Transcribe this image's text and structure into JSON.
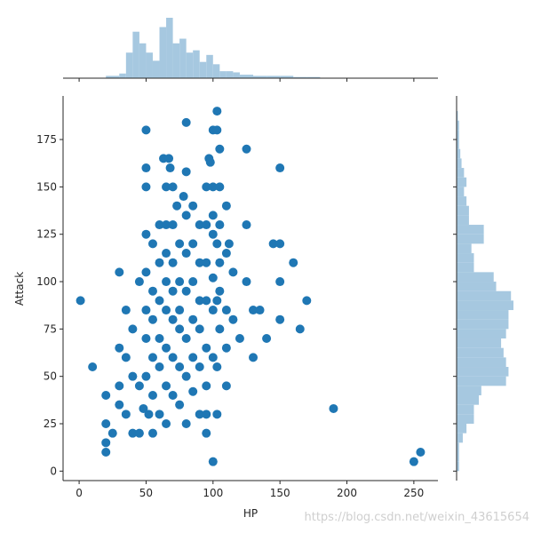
{
  "chart_data": {
    "type": "scatter",
    "title": "",
    "xlabel": "HP",
    "ylabel": "Attack",
    "xlim": [
      -12,
      268
    ],
    "ylim": [
      -5,
      198
    ],
    "x_ticks": [
      0,
      50,
      100,
      150,
      200,
      250
    ],
    "y_ticks": [
      0,
      25,
      50,
      75,
      100,
      125,
      150,
      175
    ],
    "grid": false,
    "point_color": "#1f77b4",
    "hist_color": "#a6c8e0",
    "points": [
      [
        1,
        90
      ],
      [
        10,
        55
      ],
      [
        20,
        40
      ],
      [
        20,
        25
      ],
      [
        20,
        15
      ],
      [
        20,
        10
      ],
      [
        25,
        20
      ],
      [
        30,
        35
      ],
      [
        30,
        45
      ],
      [
        30,
        65
      ],
      [
        30,
        105
      ],
      [
        35,
        85
      ],
      [
        35,
        30
      ],
      [
        35,
        60
      ],
      [
        40,
        20
      ],
      [
        40,
        50
      ],
      [
        40,
        75
      ],
      [
        45,
        20
      ],
      [
        45,
        45
      ],
      [
        45,
        100
      ],
      [
        48,
        33
      ],
      [
        50,
        180
      ],
      [
        50,
        160
      ],
      [
        50,
        150
      ],
      [
        50,
        125
      ],
      [
        50,
        105
      ],
      [
        50,
        85
      ],
      [
        50,
        70
      ],
      [
        50,
        50
      ],
      [
        52,
        30
      ],
      [
        55,
        120
      ],
      [
        55,
        95
      ],
      [
        55,
        80
      ],
      [
        55,
        60
      ],
      [
        55,
        40
      ],
      [
        55,
        20
      ],
      [
        60,
        130
      ],
      [
        60,
        110
      ],
      [
        60,
        90
      ],
      [
        60,
        70
      ],
      [
        60,
        55
      ],
      [
        60,
        30
      ],
      [
        63,
        165
      ],
      [
        65,
        150
      ],
      [
        65,
        130
      ],
      [
        65,
        115
      ],
      [
        65,
        100
      ],
      [
        65,
        85
      ],
      [
        65,
        65
      ],
      [
        65,
        45
      ],
      [
        65,
        25
      ],
      [
        67,
        165
      ],
      [
        68,
        160
      ],
      [
        70,
        150
      ],
      [
        70,
        130
      ],
      [
        70,
        110
      ],
      [
        70,
        95
      ],
      [
        70,
        80
      ],
      [
        70,
        60
      ],
      [
        70,
        40
      ],
      [
        73,
        140
      ],
      [
        75,
        120
      ],
      [
        75,
        100
      ],
      [
        75,
        85
      ],
      [
        75,
        75
      ],
      [
        75,
        55
      ],
      [
        75,
        35
      ],
      [
        78,
        145
      ],
      [
        80,
        184
      ],
      [
        80,
        158
      ],
      [
        80,
        135
      ],
      [
        80,
        115
      ],
      [
        80,
        95
      ],
      [
        80,
        70
      ],
      [
        80,
        50
      ],
      [
        80,
        25
      ],
      [
        85,
        140
      ],
      [
        85,
        120
      ],
      [
        85,
        100
      ],
      [
        85,
        80
      ],
      [
        85,
        60
      ],
      [
        85,
        42
      ],
      [
        90,
        130
      ],
      [
        90,
        110
      ],
      [
        90,
        90
      ],
      [
        90,
        75
      ],
      [
        90,
        55
      ],
      [
        90,
        30
      ],
      [
        95,
        150
      ],
      [
        95,
        130
      ],
      [
        95,
        110
      ],
      [
        95,
        90
      ],
      [
        95,
        65
      ],
      [
        95,
        45
      ],
      [
        95,
        30
      ],
      [
        95,
        20
      ],
      [
        97,
        165
      ],
      [
        98,
        163
      ],
      [
        100,
        180
      ],
      [
        100,
        150
      ],
      [
        100,
        135
      ],
      [
        100,
        125
      ],
      [
        100,
        102
      ],
      [
        100,
        85
      ],
      [
        100,
        60
      ],
      [
        100,
        5
      ],
      [
        103,
        190
      ],
      [
        103,
        180
      ],
      [
        103,
        120
      ],
      [
        103,
        90
      ],
      [
        103,
        55
      ],
      [
        103,
        30
      ],
      [
        105,
        170
      ],
      [
        105,
        150
      ],
      [
        105,
        130
      ],
      [
        105,
        110
      ],
      [
        105,
        95
      ],
      [
        105,
        75
      ],
      [
        110,
        140
      ],
      [
        110,
        115
      ],
      [
        110,
        85
      ],
      [
        110,
        65
      ],
      [
        110,
        45
      ],
      [
        112,
        120
      ],
      [
        115,
        105
      ],
      [
        115,
        80
      ],
      [
        120,
        70
      ],
      [
        125,
        100
      ],
      [
        125,
        130
      ],
      [
        125,
        170
      ],
      [
        130,
        85
      ],
      [
        130,
        60
      ],
      [
        135,
        85
      ],
      [
        140,
        70
      ],
      [
        145,
        120
      ],
      [
        150,
        120
      ],
      [
        150,
        160
      ],
      [
        150,
        100
      ],
      [
        150,
        80
      ],
      [
        160,
        110
      ],
      [
        165,
        75
      ],
      [
        170,
        90
      ],
      [
        190,
        33
      ],
      [
        250,
        5
      ],
      [
        255,
        10
      ]
    ],
    "hist_x": {
      "bin_edges": [
        0,
        10,
        20,
        30,
        35,
        40,
        45,
        50,
        55,
        60,
        65,
        70,
        75,
        80,
        85,
        90,
        95,
        100,
        105,
        110,
        115,
        120,
        130,
        140,
        150,
        160,
        170,
        180,
        190,
        200,
        250,
        260
      ],
      "values": [
        0,
        0,
        2,
        4,
        22,
        40,
        30,
        22,
        15,
        44,
        52,
        30,
        34,
        22,
        24,
        14,
        20,
        12,
        6,
        6,
        5,
        3,
        2,
        2,
        2,
        1,
        1,
        0,
        0,
        0,
        0
      ]
    },
    "hist_y": {
      "bin_edges": [
        0,
        5,
        10,
        15,
        20,
        25,
        30,
        35,
        40,
        45,
        50,
        55,
        60,
        65,
        70,
        75,
        80,
        85,
        90,
        95,
        100,
        105,
        110,
        115,
        120,
        125,
        130,
        135,
        140,
        145,
        150,
        155,
        160,
        165,
        170,
        175,
        180,
        185,
        190
      ],
      "values": [
        2,
        2,
        2,
        5,
        8,
        14,
        14,
        18,
        20,
        40,
        42,
        40,
        38,
        36,
        40,
        42,
        42,
        46,
        44,
        32,
        30,
        14,
        14,
        12,
        22,
        22,
        10,
        10,
        8,
        6,
        8,
        6,
        4,
        3,
        2,
        2,
        2,
        1
      ]
    }
  },
  "watermark": "https://blog.csdn.net/weixin_43615654"
}
